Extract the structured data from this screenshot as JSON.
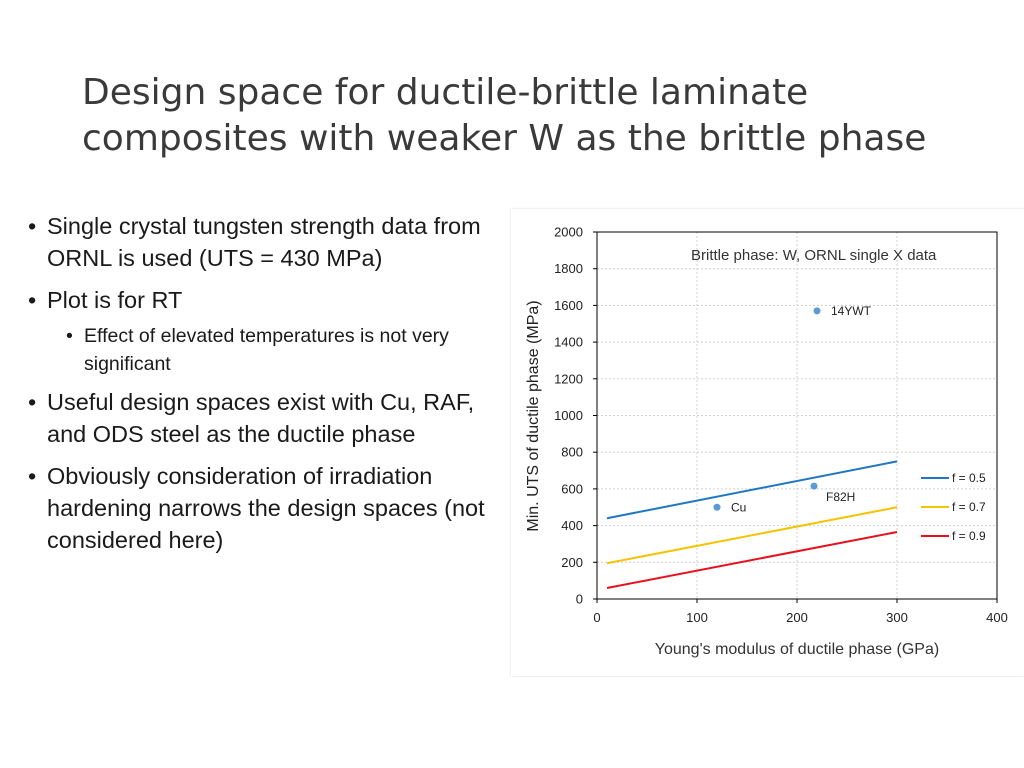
{
  "slide": {
    "title_line1": "Design space for ductile-brittle laminate",
    "title_line2": "composites with weaker W as the brittle phase",
    "bullets": [
      "Single crystal tungsten strength data from ORNL is used (UTS = 430 MPa)",
      "Plot is for RT",
      "Effect of elevated temperatures is not very significant",
      "Useful design spaces exist with Cu, RAF, and ODS steel as the ductile phase",
      "Obviously consideration of irradiation hardening narrows the design spaces (not considered here)"
    ]
  },
  "chart_data": {
    "type": "scatter",
    "annotation": "Brittle phase: W, ORNL single X data",
    "xlabel": "Young's modulus of ductile phase (GPa)",
    "ylabel": "Min. UTS of ductile phase (MPa)",
    "xlim": [
      0,
      400
    ],
    "ylim": [
      0,
      2000
    ],
    "x_ticks": [
      0,
      100,
      200,
      300,
      400
    ],
    "y_ticks": [
      0,
      200,
      400,
      600,
      800,
      1000,
      1200,
      1400,
      1600,
      1800,
      2000
    ],
    "grid": true,
    "legend_position": "right",
    "series": [
      {
        "name": "f = 0.5",
        "color": "#1f77c4",
        "x": [
          10,
          300
        ],
        "y": [
          440,
          750
        ]
      },
      {
        "name": "f = 0.7",
        "color": "#f5c400",
        "x": [
          10,
          300
        ],
        "y": [
          195,
          500
        ]
      },
      {
        "name": "f = 0.9",
        "color": "#e8101e",
        "x": [
          10,
          300
        ],
        "y": [
          60,
          365
        ]
      }
    ],
    "points": [
      {
        "label": "14YWT",
        "x": 220,
        "y": 1570,
        "color": "#5b9bd5"
      },
      {
        "label": "F82H",
        "x": 217,
        "y": 615,
        "color": "#5b9bd5"
      },
      {
        "label": "Cu",
        "x": 120,
        "y": 500,
        "color": "#5b9bd5"
      }
    ]
  }
}
